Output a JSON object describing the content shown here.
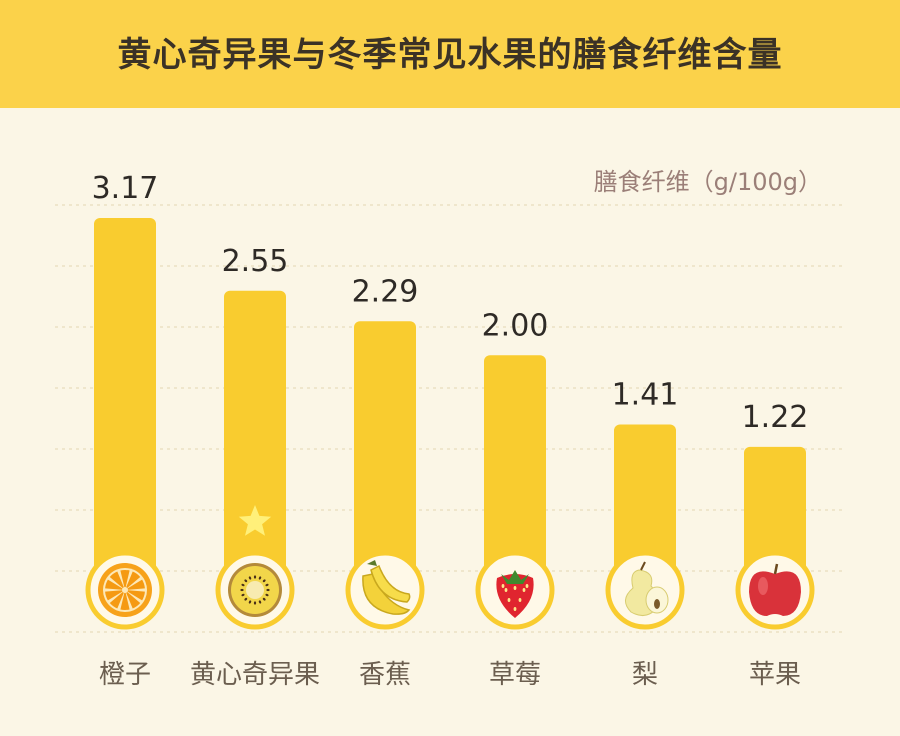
{
  "title": "黄心奇异果与冬季常见水果的膳食纤维含量",
  "colors": {
    "header_bg": "#fbd24a",
    "page_bg": "#fbf6e6",
    "bar": "#f9cc2f",
    "grid": "#efe6cc",
    "star": "#fff07a"
  },
  "chart_data": {
    "type": "bar",
    "title": "黄心奇异果与冬季常见水果的膳食纤维含量",
    "ylabel": "膳食纤维（g/100g）",
    "xlabel": "",
    "categories": [
      "橙子",
      "黄心奇异果",
      "香蕉",
      "草莓",
      "梨",
      "苹果"
    ],
    "values": [
      3.17,
      2.55,
      2.29,
      2.0,
      1.41,
      1.22
    ],
    "value_labels": [
      "3.17",
      "2.55",
      "2.29",
      "2.00",
      "1.41",
      "1.22"
    ],
    "icons": [
      "orange-icon",
      "golden-kiwi-icon",
      "banana-icon",
      "strawberry-icon",
      "pear-icon",
      "apple-icon"
    ],
    "highlight_index": 1,
    "highlight_icon": "star-icon",
    "ylim": [
      0,
      3.17
    ],
    "grid": true,
    "unit_placement": "top-right"
  }
}
